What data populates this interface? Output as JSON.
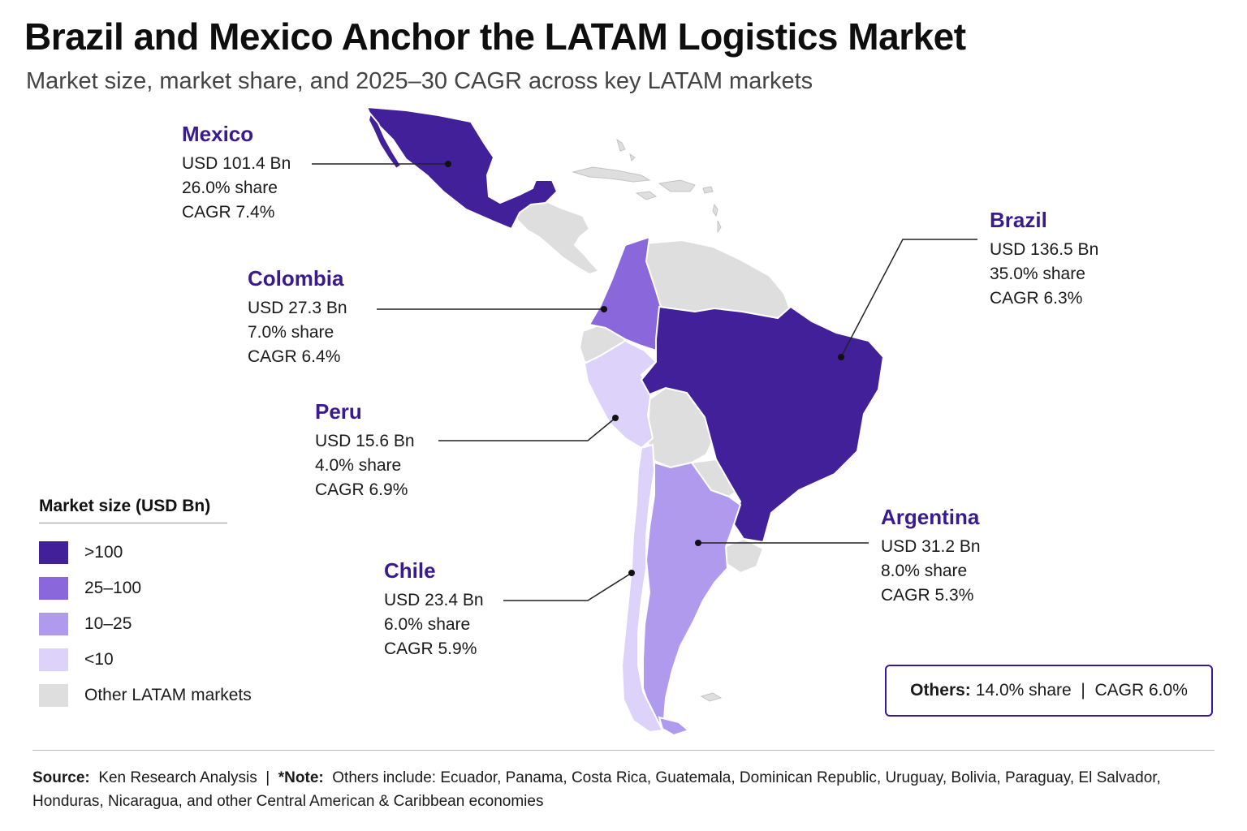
{
  "title": "Brazil and Mexico Anchor the LATAM Logistics Market",
  "subtitle": "Market size, market share, and 2025–30 CAGR across key LATAM markets",
  "colors": {
    "gt100": "#42209a",
    "r25_100": "#8a68dc",
    "r10_25": "#b09aee",
    "lt10": "#dcd2fa",
    "other": "#dedede",
    "accent": "#3a1a8f"
  },
  "countries": {
    "mexico": {
      "name": "Mexico",
      "size": "USD 101.4 Bn",
      "share": "26.0% share",
      "cagr": "CAGR 7.4%",
      "size_bn": 101.4,
      "share_pct": 26.0,
      "cagr_pct": 7.4
    },
    "brazil": {
      "name": "Brazil",
      "size": "USD 136.5 Bn",
      "share": "35.0% share",
      "cagr": "CAGR 6.3%",
      "size_bn": 136.5,
      "share_pct": 35.0,
      "cagr_pct": 6.3
    },
    "colombia": {
      "name": "Colombia",
      "size": "USD 27.3 Bn",
      "share": "7.0% share",
      "cagr": "CAGR 6.4%",
      "size_bn": 27.3,
      "share_pct": 7.0,
      "cagr_pct": 6.4
    },
    "peru": {
      "name": "Peru",
      "size": "USD 15.6 Bn",
      "share": "4.0% share",
      "cagr": "CAGR 6.9%",
      "size_bn": 15.6,
      "share_pct": 4.0,
      "cagr_pct": 6.9
    },
    "argentina": {
      "name": "Argentina",
      "size": "USD 31.2 Bn",
      "share": "8.0% share",
      "cagr": "CAGR 5.3%",
      "size_bn": 31.2,
      "share_pct": 8.0,
      "cagr_pct": 5.3
    },
    "chile": {
      "name": "Chile",
      "size": "USD 23.4 Bn",
      "share": "6.0% share",
      "cagr": "CAGR 5.9%",
      "size_bn": 23.4,
      "share_pct": 6.0,
      "cagr_pct": 5.9
    }
  },
  "legend": {
    "title": "Market size (USD Bn)",
    "items": [
      {
        "label": ">100",
        "color": "#42209a"
      },
      {
        "label": "25–100",
        "color": "#8a68dc"
      },
      {
        "label": "10–25",
        "color": "#b09aee"
      },
      {
        "label": "<10",
        "color": "#dcd2fa"
      },
      {
        "label": "Other LATAM markets",
        "color": "#dedede"
      }
    ]
  },
  "others": {
    "label": "Others:",
    "text": "14.0% share  |  CAGR 6.0%",
    "share_pct": 14.0,
    "cagr_pct": 6.0
  },
  "footer": {
    "source_label": "Source:",
    "source_text": "Ken Research Analysis",
    "separator": "|",
    "note_label": "*Note:",
    "note_text": "Others include: Ecuador, Panama, Costa Rica, Guatemala, Dominican Republic, Uruguay, Bolivia, Paraguay, El Salvador, Honduras, Nicaragua, and other Central American & Caribbean economies"
  }
}
